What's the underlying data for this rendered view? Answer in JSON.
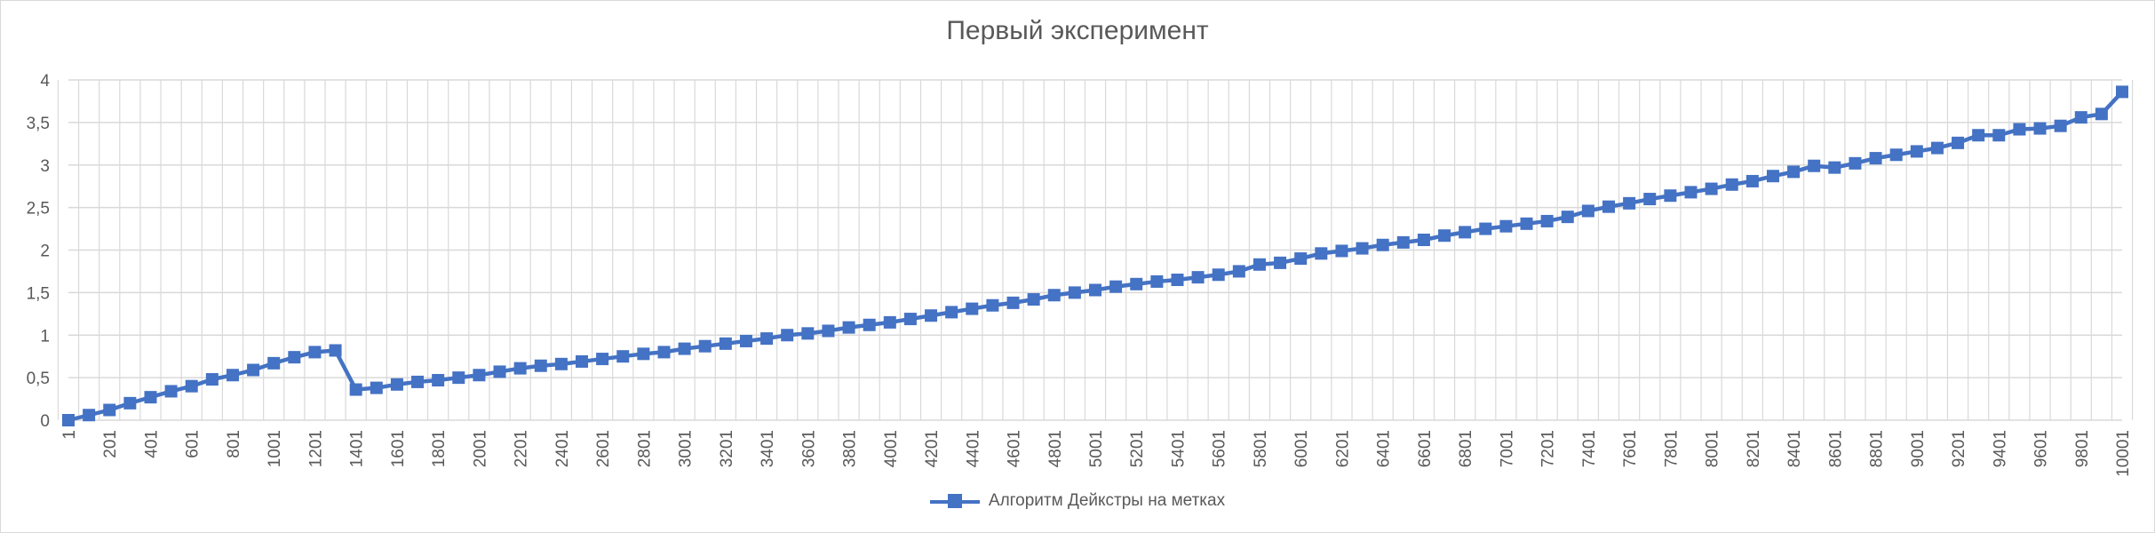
{
  "chart_data": {
    "type": "line",
    "title": "Первый эксперимент",
    "xlabel": "",
    "ylabel": "",
    "x_start": 1,
    "x_step": 100,
    "x_tick_labels": [
      "1",
      "201",
      "401",
      "601",
      "801",
      "1001",
      "1201",
      "1401",
      "1601",
      "1801",
      "2001",
      "2201",
      "2401",
      "2601",
      "2801",
      "3001",
      "3201",
      "3401",
      "3601",
      "3801",
      "4001",
      "4201",
      "4401",
      "4601",
      "4801",
      "5001",
      "5201",
      "5401",
      "5601",
      "5801",
      "6001",
      "6201",
      "6401",
      "6601",
      "6801",
      "7001",
      "7201",
      "7401",
      "7601",
      "7801",
      "8001",
      "8201",
      "8401",
      "8601",
      "8801",
      "9001",
      "9201",
      "9401",
      "9601",
      "9801",
      "10001"
    ],
    "y_tick_labels": [
      "0",
      "0,5",
      "1",
      "1,5",
      "2",
      "2,5",
      "3",
      "3,5",
      "4"
    ],
    "ylim": [
      0,
      4
    ],
    "grid": true,
    "legend_position": "bottom",
    "series": [
      {
        "name": "Алгоритм Дейкстры на метках",
        "color": "#4472c4",
        "marker": "square",
        "values": [
          0,
          0.06,
          0.12,
          0.2,
          0.27,
          0.34,
          0.4,
          0.48,
          0.53,
          0.59,
          0.67,
          0.74,
          0.8,
          0.82,
          0.36,
          0.38,
          0.42,
          0.45,
          0.47,
          0.5,
          0.53,
          0.57,
          0.61,
          0.64,
          0.66,
          0.69,
          0.72,
          0.75,
          0.78,
          0.8,
          0.84,
          0.87,
          0.9,
          0.93,
          0.96,
          1.0,
          1.02,
          1.05,
          1.09,
          1.12,
          1.15,
          1.19,
          1.23,
          1.27,
          1.31,
          1.35,
          1.38,
          1.42,
          1.47,
          1.5,
          1.53,
          1.57,
          1.6,
          1.63,
          1.65,
          1.68,
          1.71,
          1.75,
          1.83,
          1.85,
          1.9,
          1.96,
          1.99,
          2.02,
          2.06,
          2.09,
          2.12,
          2.17,
          2.21,
          2.25,
          2.28,
          2.31,
          2.34,
          2.39,
          2.46,
          2.51,
          2.55,
          2.6,
          2.64,
          2.68,
          2.72,
          2.77,
          2.81,
          2.87,
          2.92,
          2.99,
          2.97,
          3.02,
          3.08,
          3.12,
          3.16,
          3.2,
          3.26,
          3.35,
          3.35,
          3.42,
          3.43,
          3.46,
          3.56,
          3.6,
          3.86
        ]
      }
    ]
  }
}
